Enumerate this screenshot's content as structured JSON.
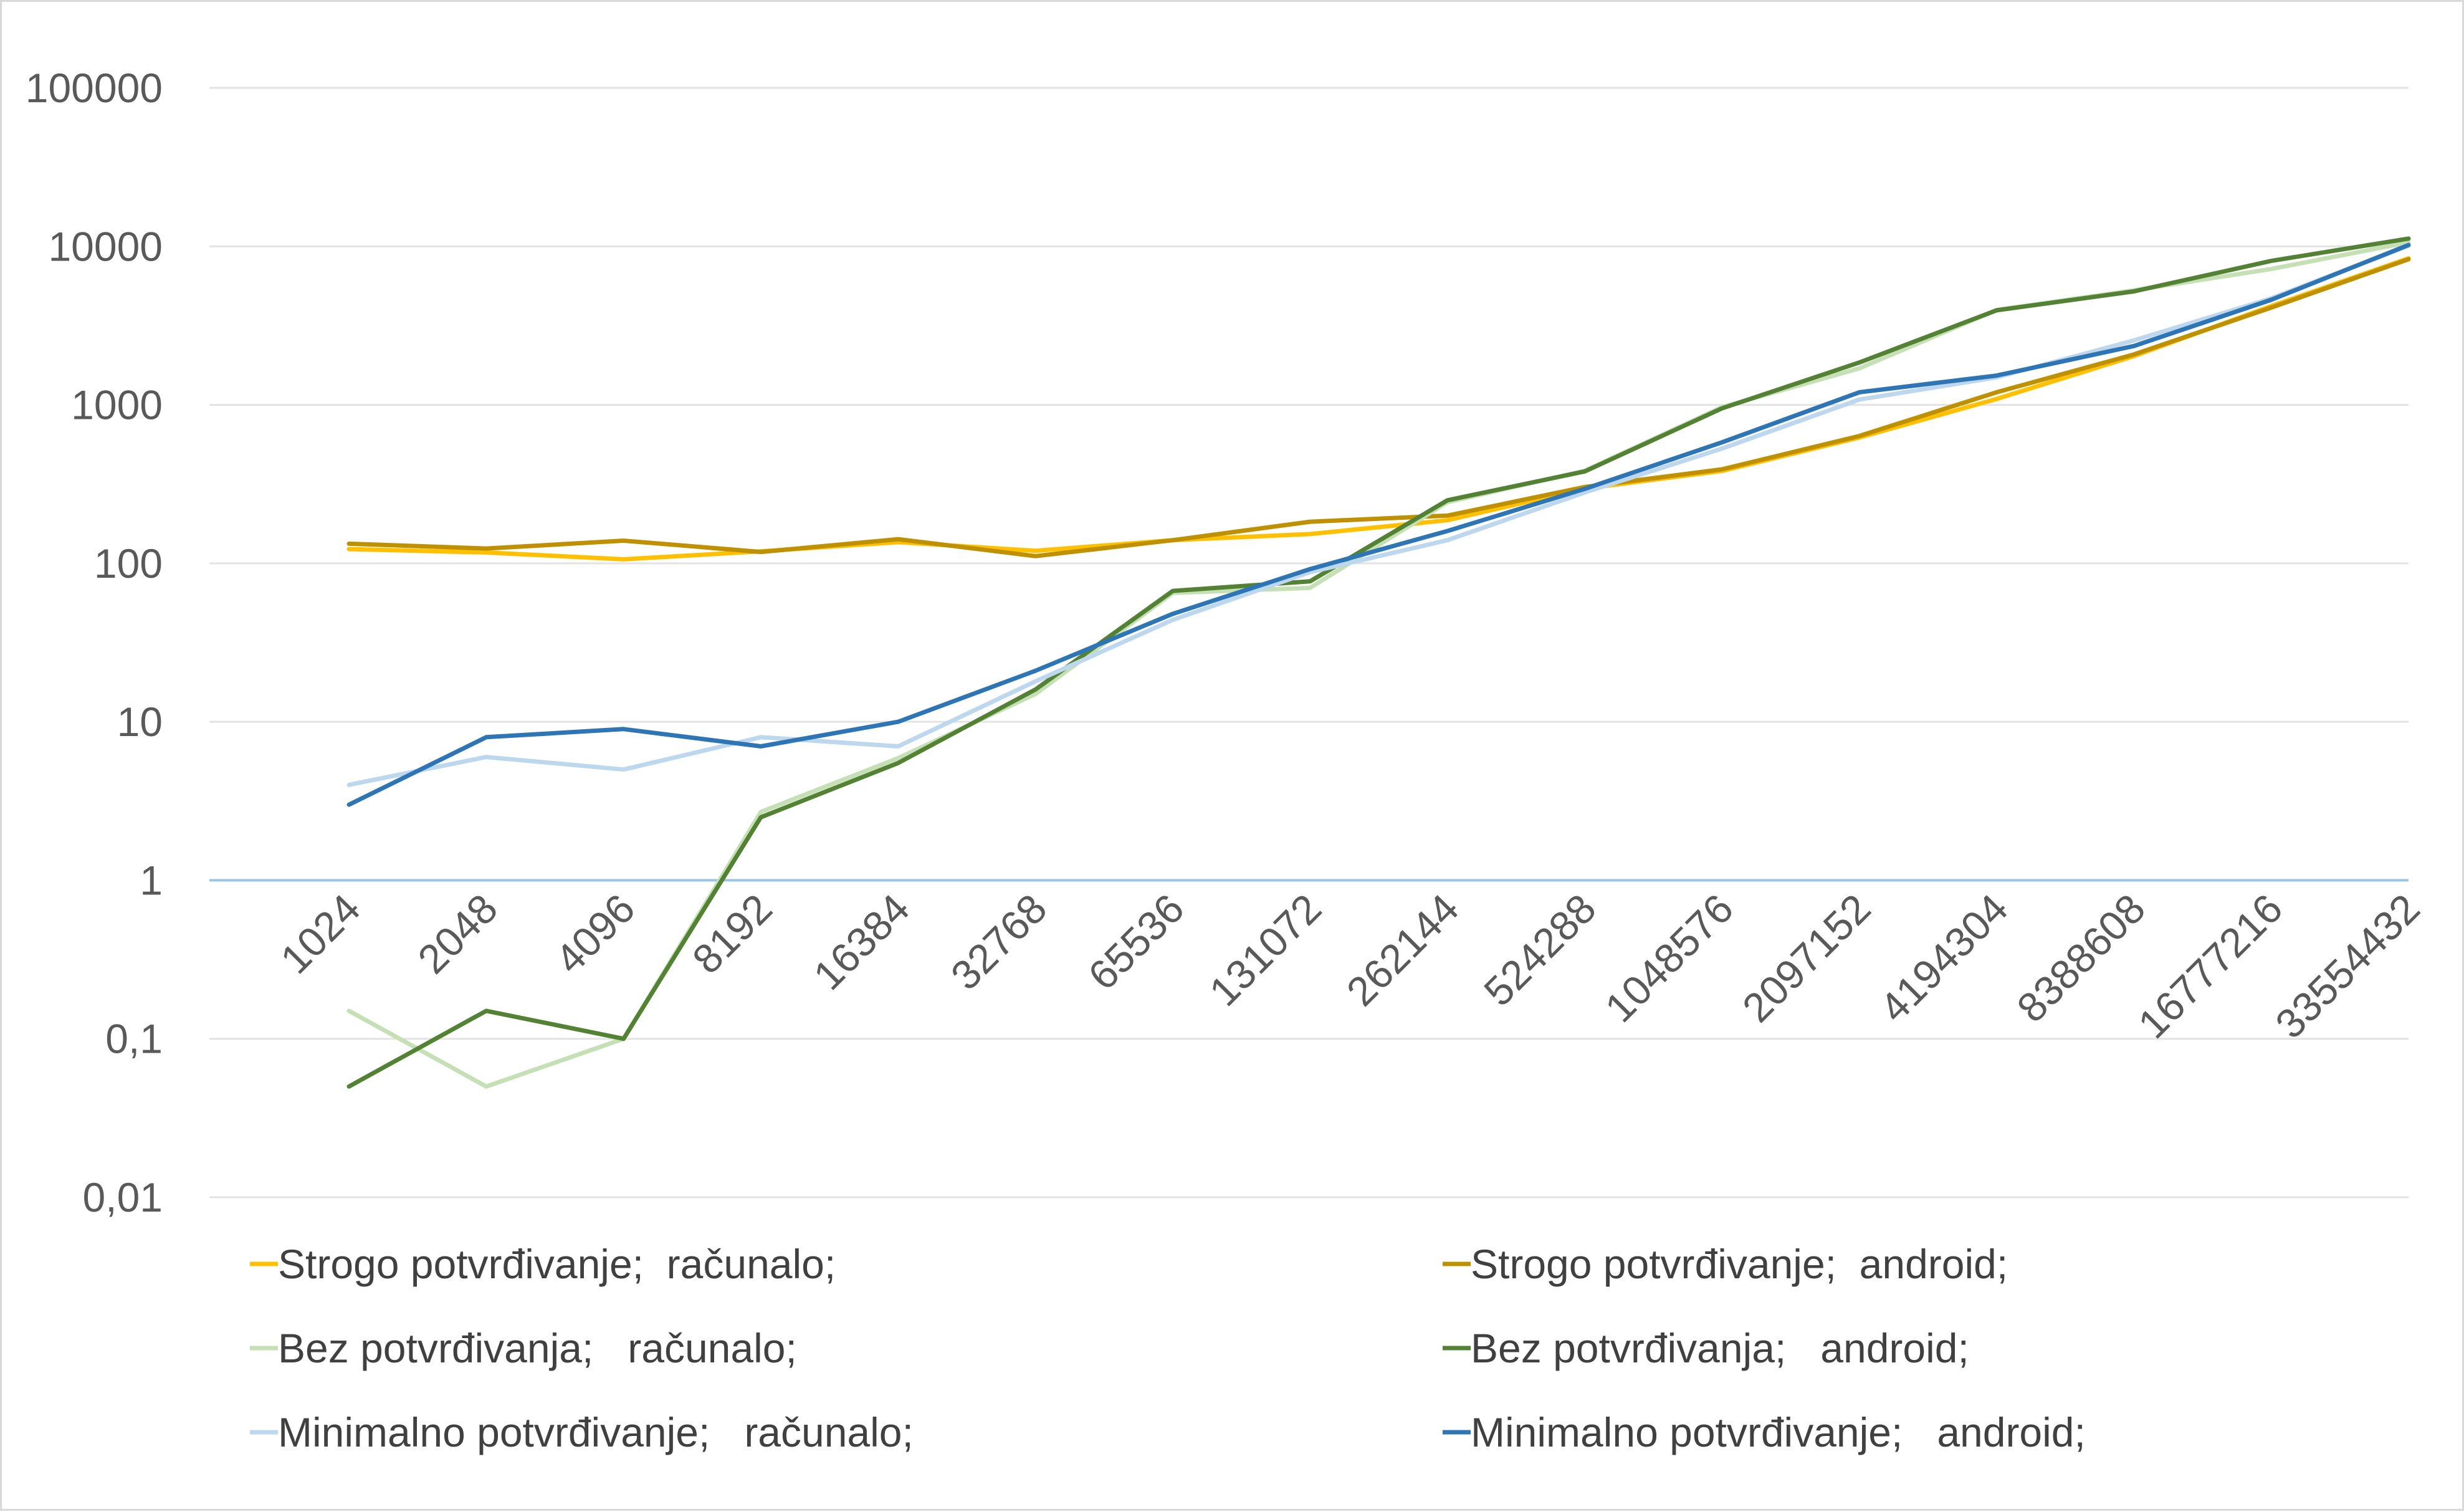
{
  "chart_data": {
    "type": "line",
    "title": "",
    "xlabel": "",
    "ylabel": "",
    "yscale": "log",
    "ylim": [
      0.01,
      100000
    ],
    "y_ticks": [
      {
        "value": 100000,
        "label": "100000"
      },
      {
        "value": 10000,
        "label": "10000"
      },
      {
        "value": 1000,
        "label": "1000"
      },
      {
        "value": 100,
        "label": "100"
      },
      {
        "value": 10,
        "label": "10"
      },
      {
        "value": 1,
        "label": "1"
      },
      {
        "value": 0.1,
        "label": "0,1"
      },
      {
        "value": 0.01,
        "label": "0,01"
      }
    ],
    "grid": true,
    "legend_position": "bottom",
    "categories": [
      "1024",
      "2048",
      "4096",
      "8192",
      "16384",
      "32768",
      "65536",
      "131072",
      "262144",
      "524288",
      "1048576",
      "2097152",
      "4194304",
      "8388608",
      "16777216",
      "33554432"
    ],
    "series": [
      {
        "name": "Strogo potvrđivanje;  računalo;",
        "color": "#FFC000",
        "values": [
          123,
          117,
          106,
          119,
          136,
          120,
          140,
          153,
          187,
          296,
          383,
          622,
          1090,
          2030,
          4200,
          8400
        ]
      },
      {
        "name": "Strogo potvrđivanje;  android;",
        "color": "#BF9000",
        "values": [
          133,
          124,
          139,
          118,
          142,
          111,
          140,
          183,
          200,
          303,
          392,
          636,
          1200,
          2080,
          4110,
          8300
        ]
      },
      {
        "name": "Bez potvrđivanja;   računalo;",
        "color": "#C5E0B4",
        "values": [
          0.15,
          0.05,
          0.1,
          2.7,
          5.9,
          15,
          65,
          70,
          243,
          384,
          967,
          1700,
          3970,
          5280,
          7200,
          10600
        ]
      },
      {
        "name": "Bez potvrđivanja;   android;",
        "color": "#548235",
        "values": [
          0.05,
          0.15,
          0.1,
          2.5,
          5.5,
          16,
          67,
          77,
          250,
          380,
          950,
          1850,
          3950,
          5200,
          8100,
          11200
        ]
      },
      {
        "name": "Minimalno potvrđivanje;   računalo;",
        "color": "#BDD7EE",
        "values": [
          4,
          6,
          5,
          8,
          7,
          18,
          44,
          88,
          140,
          280,
          530,
          1080,
          1490,
          2550,
          4700,
          10100
        ]
      },
      {
        "name": "Minimalno potvrđivanje;   android;",
        "color": "#2E75B6",
        "values": [
          3,
          8,
          9,
          7,
          10,
          21,
          48,
          92,
          160,
          295,
          580,
          1200,
          1530,
          2350,
          4600,
          10200
        ]
      }
    ]
  }
}
